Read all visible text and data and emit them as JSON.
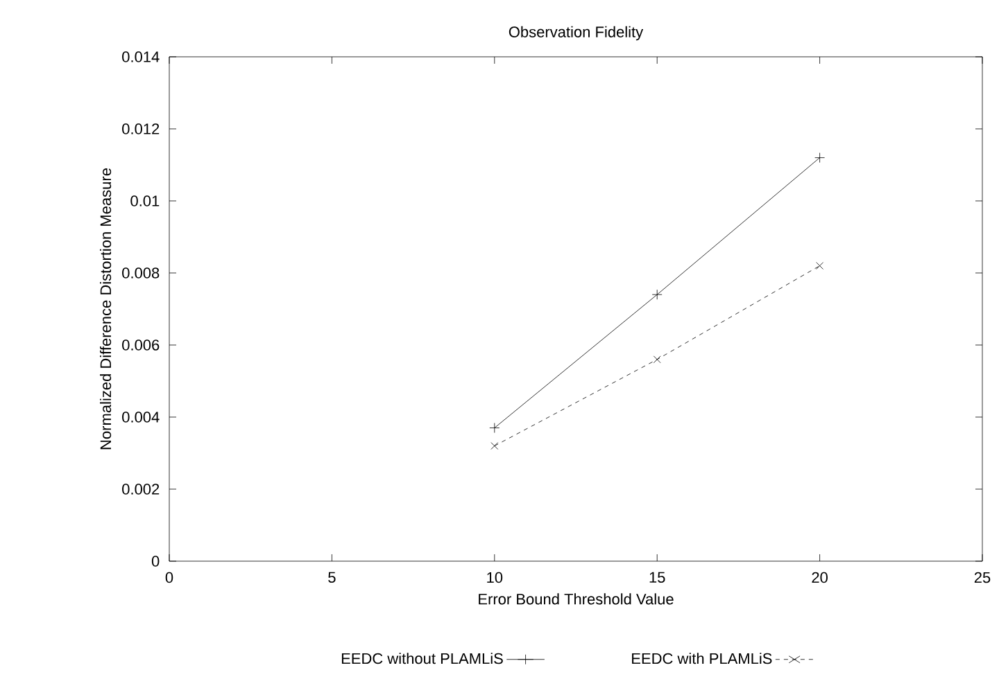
{
  "chart_data": {
    "type": "line",
    "title": "Observation Fidelity",
    "xlabel": "Error Bound Threshold Value",
    "ylabel": "Normalized Difference Distortion Measure",
    "x": [
      10,
      15,
      20
    ],
    "series": [
      {
        "name": "EEDC without PLAMLiS",
        "color": "#000000",
        "values": [
          0.0037,
          0.0074,
          0.0112
        ],
        "marker": "plus",
        "line_style": "solid"
      },
      {
        "name": "EEDC with PLAMLiS",
        "color": "#000000",
        "values": [
          0.0032,
          0.0056,
          0.0082
        ],
        "marker": "cross",
        "line_style": "dashed"
      }
    ],
    "xlim": [
      0,
      25
    ],
    "xticks": [
      0,
      5,
      10,
      15,
      20,
      25
    ],
    "ylim": [
      0,
      0.014
    ],
    "yticks": [
      0,
      0.002,
      0.004,
      0.006,
      0.008,
      0.01,
      0.012,
      0.014
    ],
    "grid": false,
    "legend": "bottom"
  }
}
